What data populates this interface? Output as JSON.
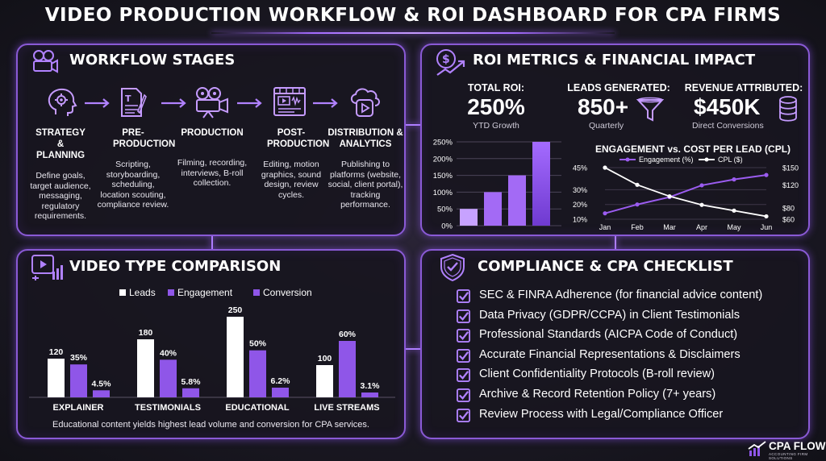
{
  "title": "VIDEO PRODUCTION WORKFLOW & ROI DASHBOARD FOR CPA FIRMS",
  "workflow": {
    "title": "WORKFLOW STAGES",
    "stages": [
      {
        "name": "STRATEGY & PLANNING",
        "desc": "Define goals, target audience, messaging, regulatory requirements.",
        "icon": "brain-gear-icon"
      },
      {
        "name": "PRE-PRODUCTION",
        "desc": "Scripting, storyboarding, scheduling, location scouting, compliance review.",
        "icon": "script-pen-icon"
      },
      {
        "name": "PRODUCTION",
        "desc": "Filming, recording, interviews, B-roll collection.",
        "icon": "film-camera-icon"
      },
      {
        "name": "POST-PRODUCTION",
        "desc": "Editing, motion graphics, sound design, review cycles.",
        "icon": "video-editor-icon"
      },
      {
        "name": "DISTRIBUTION & ANALYTICS",
        "desc": "Publishing to platforms (website, social, client portal), tracking performance.",
        "icon": "cloud-play-icon"
      }
    ]
  },
  "roi": {
    "title": "ROI METRICS & FINANCIAL IMPACT",
    "kpis": [
      {
        "label": "TOTAL ROI:",
        "value": "250%",
        "sub": "YTD Growth"
      },
      {
        "label": "LEADS GENERATED:",
        "value": "850+",
        "sub": "Quarterly",
        "icon": "funnel-icon"
      },
      {
        "label": "REVENUE ATTRIBUTED:",
        "value": "$450K",
        "sub": "Direct Conversions",
        "icon": "coin-stack-icon"
      }
    ]
  },
  "video_types": {
    "title": "VIDEO TYPE COMPARISON",
    "note": "Educational content yields highest lead volume and conversion for CPA services."
  },
  "compliance": {
    "title": "COMPLIANCE & CPA CHECKLIST",
    "items": [
      "SEC & FINRA Adherence (for financial advice content)",
      "Data Privacy (GDPR/CCPA) in Client Testimonials",
      "Professional Standards (AICPA Code of Conduct)",
      "Accurate Financial Representations & Disclaimers",
      "Client Confidentiality Protocols (B-roll review)",
      "Archive & Record Retention Policy (7+ years)",
      "Review Process with Legal/Compliance Officer"
    ]
  },
  "logo": {
    "name": "CPA FLOW",
    "tagline": "ACCOUNTING FIRM SOLUTIONS"
  },
  "colors": {
    "accent": "#9b5cf0",
    "accent_light": "#c7a2ff",
    "panel_border": "#8a5ad6",
    "bar_white": "#ffffff",
    "bar_purple": "#8f56e8"
  },
  "chart_data": [
    {
      "type": "bar",
      "categories": [
        "",
        "",
        "",
        ""
      ],
      "values": [
        50,
        100,
        150,
        250
      ],
      "ylim": [
        0,
        250
      ],
      "yticks": [
        "0%",
        "50%",
        "100%",
        "150%",
        "200%",
        "250%"
      ],
      "grid": true
    },
    {
      "type": "line",
      "title": "ENGAGEMENT vs. COST PER LEAD (CPL)",
      "categories": [
        "Jan",
        "Feb",
        "Mar",
        "Apr",
        "May",
        "Jun"
      ],
      "series": [
        {
          "name": "Engagement (%)",
          "values": [
            14,
            20,
            25,
            33,
            37,
            40
          ],
          "axis": "left",
          "color": "#9b5cf0"
        },
        {
          "name": "CPL ($)",
          "values": [
            150,
            120,
            100,
            85,
            75,
            65
          ],
          "axis": "right",
          "color": "#ffffff"
        }
      ],
      "ylim_left": [
        10,
        45
      ],
      "yticks_left": [
        "10%",
        "20%",
        "30%",
        "45%"
      ],
      "ylim_right": [
        60,
        150
      ],
      "yticks_right": [
        "$60",
        "$80",
        "$120",
        "$150"
      ],
      "legend": "top"
    },
    {
      "type": "bar",
      "categories": [
        "EXPLAINER",
        "TESTIMONIALS",
        "EDUCATIONAL",
        "LIVE STREAMS"
      ],
      "series": [
        {
          "name": "Leads",
          "values": [
            120,
            180,
            250,
            100
          ],
          "labels": [
            "120",
            "180",
            "250",
            "100"
          ],
          "color": "#ffffff"
        },
        {
          "name": "Engagement",
          "values": [
            35,
            40,
            50,
            60
          ],
          "labels": [
            "35%",
            "40%",
            "50%",
            "60%"
          ],
          "color": "#8f56e8"
        },
        {
          "name": "Conversion",
          "values": [
            4.5,
            5.8,
            6.2,
            3.1
          ],
          "labels": [
            "4.5%",
            "5.8%",
            "6.2%",
            "3.1%"
          ],
          "color": "#8f56e8"
        }
      ],
      "legend": "top"
    }
  ]
}
